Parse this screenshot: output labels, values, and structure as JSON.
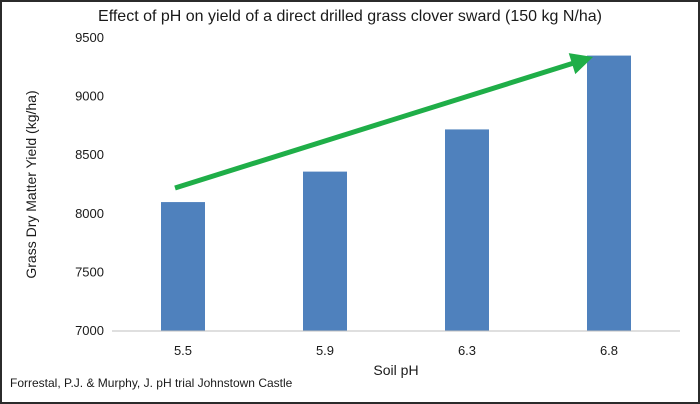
{
  "chart_data": {
    "type": "bar",
    "title": "Effect of pH on yield of a direct drilled grass clover sward (150 kg N/ha)",
    "xlabel": "Soil pH",
    "ylabel": "Grass Dry Matter Yield (kg/ha)",
    "categories": [
      "5.5",
      "5.9",
      "6.3",
      "6.8"
    ],
    "values": [
      8100,
      8360,
      8720,
      9350
    ],
    "ylim": [
      7000,
      9500
    ],
    "yticks": [
      7000,
      7500,
      8000,
      8500,
      9000,
      9500
    ],
    "grid": false,
    "bar_color": "#4f81bd",
    "arrow_color": "#1fae48",
    "annotation": "upward trend arrow"
  },
  "source": "Forrestal, P.J. & Murphy, J. pH trial Johnstown Castle"
}
